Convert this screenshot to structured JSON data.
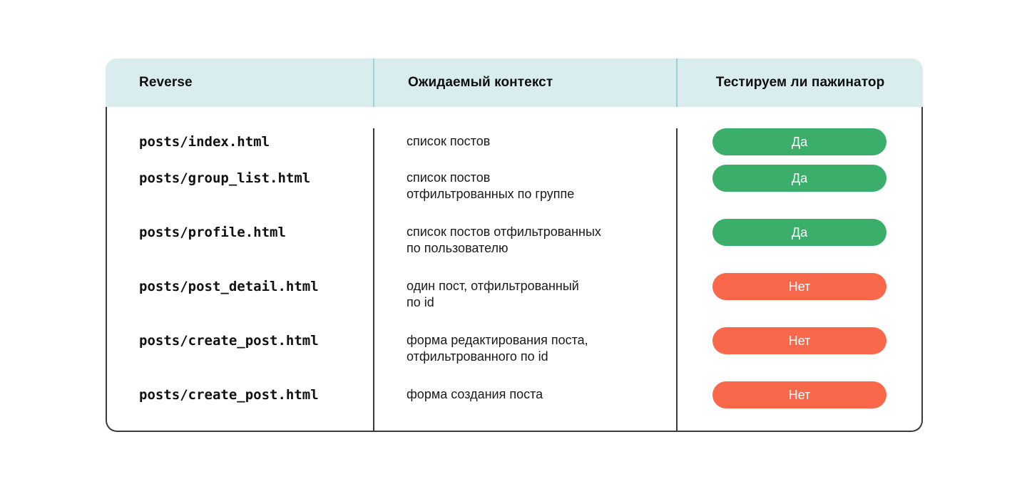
{
  "table": {
    "columns": [
      {
        "label": "Reverse"
      },
      {
        "label": "Ожидаемый контекст"
      },
      {
        "label": "Тестируем ли пажинатор"
      }
    ],
    "rows": [
      {
        "template": "posts/index.html",
        "context": "список постов",
        "paginator": "Да",
        "status": "yes"
      },
      {
        "template": "posts/group_list.html",
        "context": "список постов\nотфильтрованных по группе",
        "paginator": "Да",
        "status": "yes"
      },
      {
        "template": "posts/profile.html",
        "context": "список постов отфильтрованных\nпо пользователю",
        "paginator": "Да",
        "status": "yes"
      },
      {
        "template": "posts/post_detail.html",
        "context": "один пост, отфильтрованный\nпо id",
        "paginator": "Нет",
        "status": "no"
      },
      {
        "template": "posts/create_post.html",
        "context": "форма редактирования поста,\nотфильтрованного по id",
        "paginator": "Нет",
        "status": "no"
      },
      {
        "template": "posts/create_post.html",
        "context": "форма создания поста",
        "paginator": "Нет",
        "status": "no"
      }
    ],
    "colors": {
      "header_bg": "#D9ECEE",
      "header_divider": "#9CD2D7",
      "body_border": "#3A3A3A",
      "badge_yes": "#3BAE6B",
      "badge_no": "#F9684A",
      "badge_text": "#FFFFFF"
    }
  }
}
